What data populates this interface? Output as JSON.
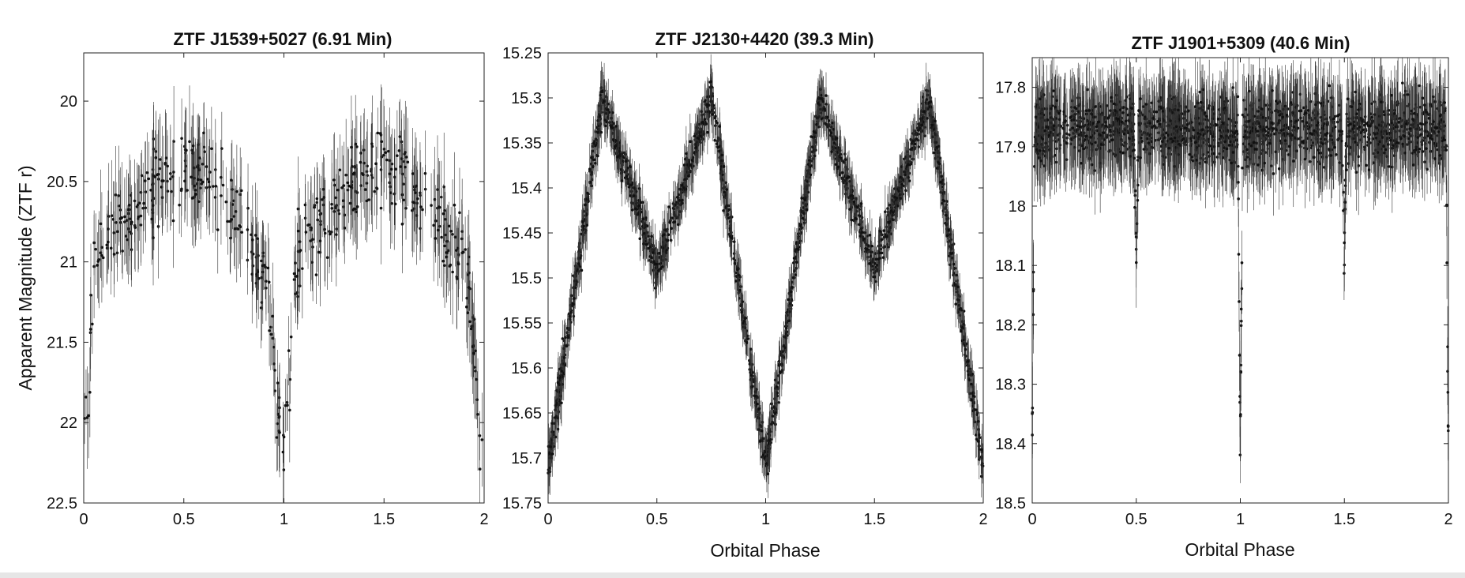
{
  "chart_data": [
    {
      "type": "scatter",
      "title": "ZTF J1539+5027 (6.91 Min)",
      "xlabel": "",
      "ylabel": "Apparent Magnitude (ZTF r)",
      "xlim": [
        0,
        2
      ],
      "ylim": [
        22.5,
        19.7
      ],
      "y_reversed": true,
      "x_ticks": [
        "0",
        "0.5",
        "1",
        "1.5",
        "2"
      ],
      "y_ticks": [
        "20",
        "20.5",
        "21",
        "21.5",
        "22",
        "22.5"
      ],
      "y_tick_values": [
        20,
        20.5,
        21,
        21.5,
        22,
        22.5
      ],
      "error_bars": true,
      "marker_color": "#111111",
      "light_curve_shape": "eclipse",
      "curve": {
        "phase": [
          0.0,
          0.03,
          0.05,
          0.08,
          0.12,
          0.2,
          0.3,
          0.4,
          0.5,
          0.6,
          0.7,
          0.8,
          0.88,
          0.93,
          0.95,
          0.97,
          1.0
        ],
        "magnitude": [
          22.2,
          21.6,
          21.1,
          20.9,
          20.85,
          20.75,
          20.6,
          20.45,
          20.4,
          20.45,
          20.6,
          20.8,
          20.95,
          21.2,
          21.6,
          22.0,
          22.2
        ]
      },
      "scatter_sigma": 0.12,
      "error_size": 0.25
    },
    {
      "type": "scatter",
      "title": "ZTF J2130+4420 (39.3 Min)",
      "xlabel": "Orbital Phase",
      "ylabel": "",
      "xlim": [
        0,
        2
      ],
      "ylim": [
        15.75,
        15.25
      ],
      "y_reversed": true,
      "x_ticks": [
        "0",
        "0.5",
        "1",
        "1.5",
        "2"
      ],
      "y_ticks": [
        "15.25",
        "15.3",
        "15.35",
        "15.4",
        "15.45",
        "15.5",
        "15.55",
        "15.6",
        "15.65",
        "15.7",
        "15.75"
      ],
      "y_tick_values": [
        15.25,
        15.3,
        15.35,
        15.4,
        15.45,
        15.5,
        15.55,
        15.6,
        15.65,
        15.7,
        15.75
      ],
      "error_bars": true,
      "marker_color": "#111111",
      "light_curve_shape": "ellipsoidal",
      "curve": {
        "phase": [
          0.0,
          0.25,
          0.5,
          0.75,
          1.0
        ],
        "magnitude": [
          15.71,
          15.3,
          15.49,
          15.3,
          15.71
        ]
      },
      "scatter_sigma": 0.01,
      "error_size": 0.022
    },
    {
      "type": "scatter",
      "title": "ZTF J1901+5309 (40.6 Min)",
      "xlabel": "Orbital Phase",
      "ylabel": "",
      "xlim": [
        0,
        2
      ],
      "ylim": [
        18.5,
        17.75
      ],
      "y_reversed": true,
      "x_ticks": [
        "0",
        "0.5",
        "1",
        "1.5",
        "2"
      ],
      "y_ticks": [
        "17.8",
        "17.9",
        "18",
        "18.1",
        "18.2",
        "18.3",
        "18.4",
        "18.5"
      ],
      "y_tick_values": [
        17.8,
        17.9,
        18,
        18.1,
        18.2,
        18.3,
        18.4,
        18.5
      ],
      "error_bars": true,
      "marker_color": "#111111",
      "light_curve_shape": "flat-with-eclipses",
      "curve": {
        "baseline_mag": 17.87,
        "primary_eclipse": {
          "phase": 0.0,
          "depth_mag": 18.42,
          "half_width_phase": 0.012
        },
        "secondary_eclipse": {
          "phase": 0.5,
          "depth_mag": 18.08,
          "half_width_phase": 0.012
        }
      },
      "scatter_sigma": 0.025,
      "error_size": 0.06
    }
  ]
}
